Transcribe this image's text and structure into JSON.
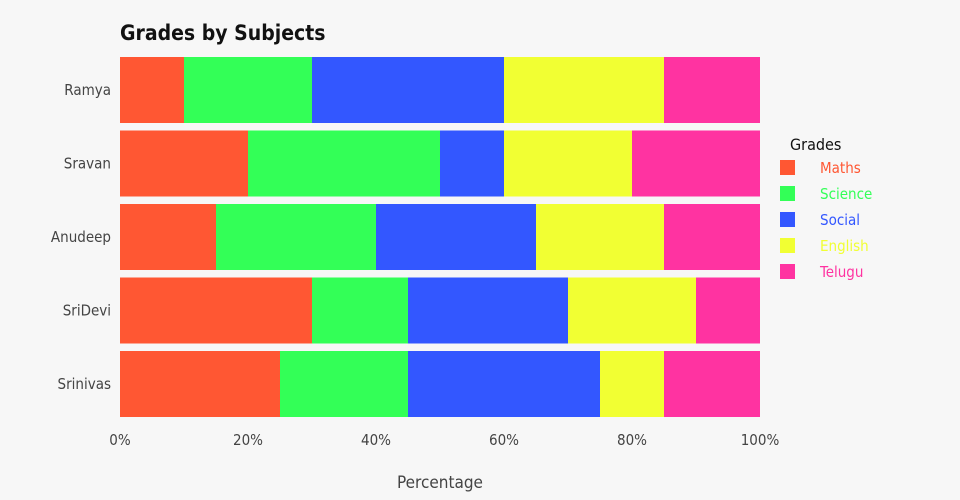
{
  "chart_data": {
    "type": "bar",
    "orientation": "horizontal",
    "stacked": "percent",
    "title": "Grades by Subjects",
    "xlabel": "Percentage",
    "ylabel": "",
    "xlim": [
      0,
      100
    ],
    "x_ticks": [
      "0%",
      "20%",
      "40%",
      "60%",
      "80%",
      "100%"
    ],
    "categories": [
      "Ramya",
      "Sravan",
      "Anudeep",
      "SriDevi",
      "Srinivas"
    ],
    "legend": {
      "title": "Grades",
      "position": "right"
    },
    "grid": false,
    "series": [
      {
        "name": "Maths",
        "color": "#ff5733",
        "values": [
          10,
          20,
          15,
          30,
          25
        ]
      },
      {
        "name": "Science",
        "color": "#33ff57",
        "values": [
          20,
          30,
          25,
          15,
          20
        ]
      },
      {
        "name": "Social",
        "color": "#3357ff",
        "values": [
          30,
          10,
          25,
          25,
          30
        ]
      },
      {
        "name": "English",
        "color": "#f1ff33",
        "values": [
          25,
          20,
          20,
          20,
          10
        ]
      },
      {
        "name": "Telugu",
        "color": "#ff33a1",
        "values": [
          15,
          20,
          15,
          10,
          15
        ]
      }
    ]
  }
}
